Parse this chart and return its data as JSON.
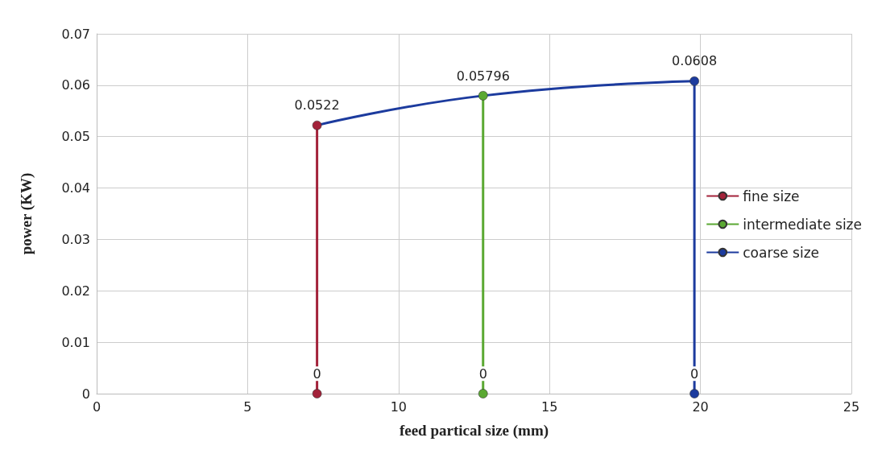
{
  "chart_data": {
    "type": "line",
    "xlabel": "feed partical size (mm)",
    "ylabel": "power (KW)",
    "xlim": [
      0,
      25
    ],
    "xticks": [
      0,
      5,
      10,
      15,
      20,
      25
    ],
    "ylim": [
      0,
      0.07
    ],
    "yticks": [
      0,
      0.01,
      0.02,
      0.03,
      0.04,
      0.05,
      0.06,
      0.07
    ],
    "grid": true,
    "legend": "right",
    "marker": "circle",
    "series": [
      {
        "name": "fine size",
        "color": "#a3223a",
        "x": [
          7.3,
          7.3
        ],
        "values": [
          0,
          0.0522
        ],
        "value_labels": [
          "0",
          "0.0522"
        ]
      },
      {
        "name": "intermediate size",
        "color": "#5aa832",
        "x": [
          12.8,
          12.8
        ],
        "values": [
          0,
          0.05796
        ],
        "value_labels": [
          "0",
          "0.05796"
        ]
      },
      {
        "name": "coarse size",
        "color": "#1c3b9e",
        "x": [
          19.8,
          19.8
        ],
        "values": [
          0,
          0.0608
        ],
        "value_labels": [
          "0",
          "0.0608"
        ]
      },
      {
        "color": "#1c3b9e",
        "x": [
          7.3,
          12.8,
          19.8
        ],
        "values": [
          0.0522,
          0.05796,
          0.0608
        ],
        "value_labels": [
          null,
          null,
          null
        ]
      }
    ]
  }
}
